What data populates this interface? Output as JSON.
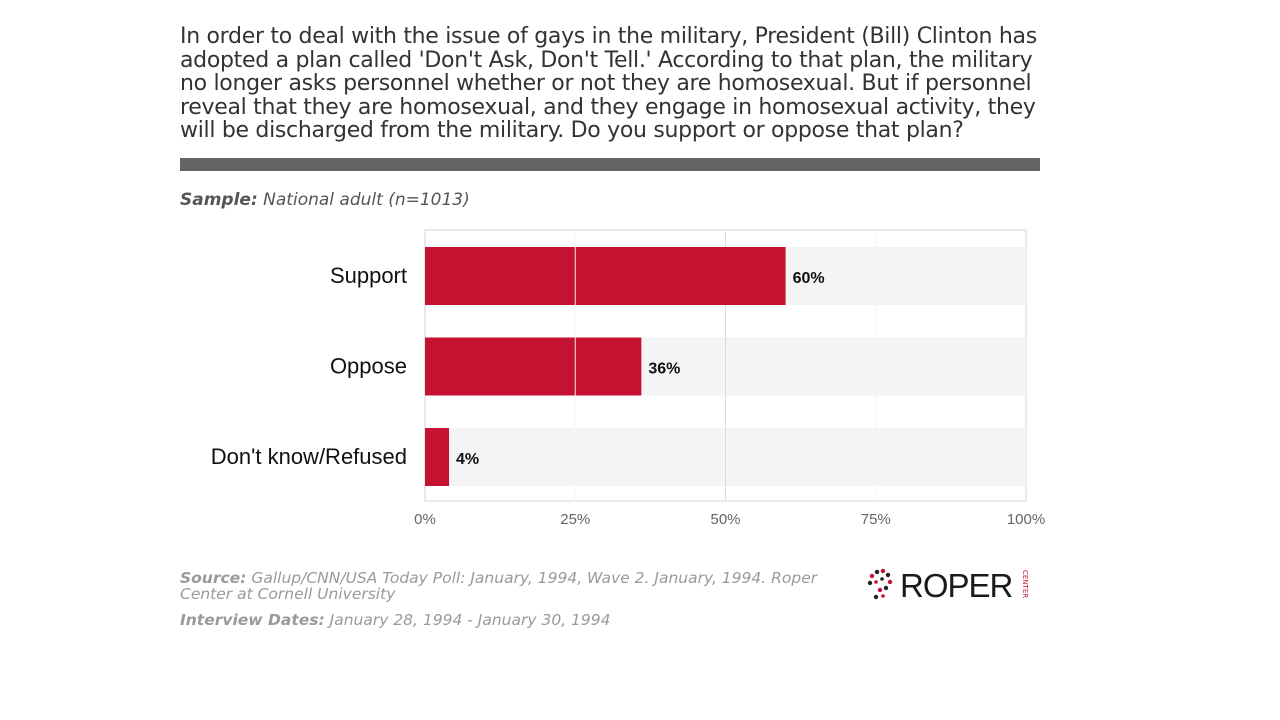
{
  "question": "In order to deal with the issue of gays in the military, President (Bill) Clinton has adopted a plan called 'Don't Ask, Don't Tell.' According to that plan, the military no longer asks personnel whether or not they are homosexual. But if personnel reveal that they are homosexual, and they engage in homosexual activity, they will be discharged from the military. Do you support or oppose that plan?",
  "sample": {
    "label": "Sample:",
    "value": "National adult (n=1013)"
  },
  "chart_data": {
    "type": "bar",
    "orientation": "horizontal",
    "categories": [
      "Support",
      "Oppose",
      "Don't know/Refused"
    ],
    "values": [
      60,
      36,
      4
    ],
    "value_labels": [
      "60%",
      "36%",
      "4%"
    ],
    "xlim": [
      0,
      100
    ],
    "xticks": [
      "0%",
      "25%",
      "50%",
      "75%",
      "100%"
    ],
    "grid": true,
    "bar_color": "#c41230"
  },
  "source": {
    "label": "Source:",
    "text": "Gallup/CNN/USA Today Poll: January, 1994, Wave 2. January, 1994. Roper Center at Cornell University"
  },
  "interview_dates": {
    "label": "Interview Dates:",
    "text": "January 28, 1994 - January 30, 1994"
  },
  "logo": {
    "text": "ROPER",
    "side_text": "CENTER"
  }
}
